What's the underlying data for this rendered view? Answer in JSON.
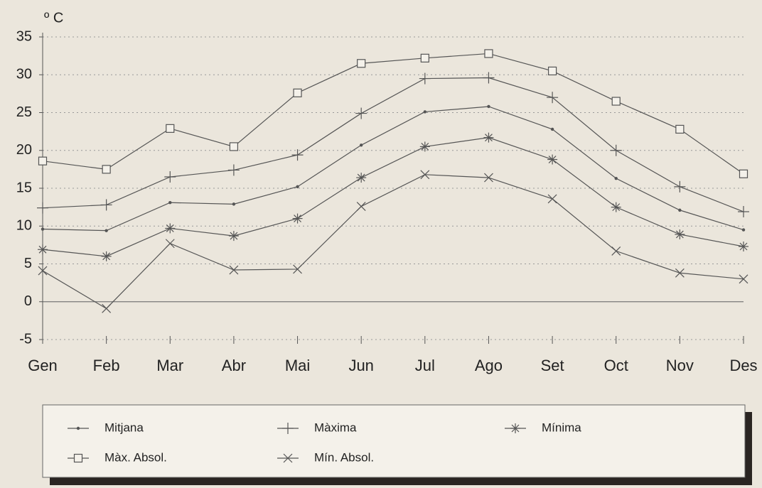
{
  "chart_data": {
    "type": "line",
    "unit_label": "º C",
    "categories": [
      "Gen",
      "Feb",
      "Mar",
      "Abr",
      "Mai",
      "Jun",
      "Jul",
      "Ago",
      "Set",
      "Oct",
      "Nov",
      "Des"
    ],
    "series": [
      {
        "name": "Mitjana",
        "color": "#555555",
        "marker": "dot",
        "values": [
          9.6,
          9.4,
          13.1,
          12.9,
          15.2,
          20.7,
          25.1,
          25.8,
          22.8,
          16.3,
          12.1,
          9.5
        ]
      },
      {
        "name": "Màxima",
        "color": "#555555",
        "marker": "plus",
        "values": [
          12.4,
          12.8,
          16.5,
          17.4,
          19.4,
          24.9,
          29.5,
          29.6,
          27.0,
          20.0,
          15.2,
          11.9
        ]
      },
      {
        "name": "Mínima",
        "color": "#555555",
        "marker": "asterisk",
        "values": [
          6.9,
          6.0,
          9.7,
          8.7,
          11.0,
          16.4,
          20.5,
          21.7,
          18.8,
          12.5,
          8.9,
          7.3
        ]
      },
      {
        "name": "Màx. Absol.",
        "color": "#555555",
        "marker": "square",
        "values": [
          18.6,
          17.5,
          22.9,
          20.5,
          27.6,
          31.5,
          32.2,
          32.8,
          30.5,
          26.5,
          22.8,
          16.9
        ]
      },
      {
        "name": "Mín. Absol.",
        "color": "#555555",
        "marker": "cross",
        "values": [
          4.1,
          -0.9,
          7.7,
          4.2,
          4.3,
          12.6,
          16.8,
          16.4,
          13.6,
          6.7,
          3.8,
          3.0
        ]
      }
    ],
    "ylim": [
      -5,
      35
    ],
    "yticks": [
      -5,
      0,
      5,
      10,
      15,
      20,
      25,
      30,
      35
    ],
    "grid": true
  }
}
